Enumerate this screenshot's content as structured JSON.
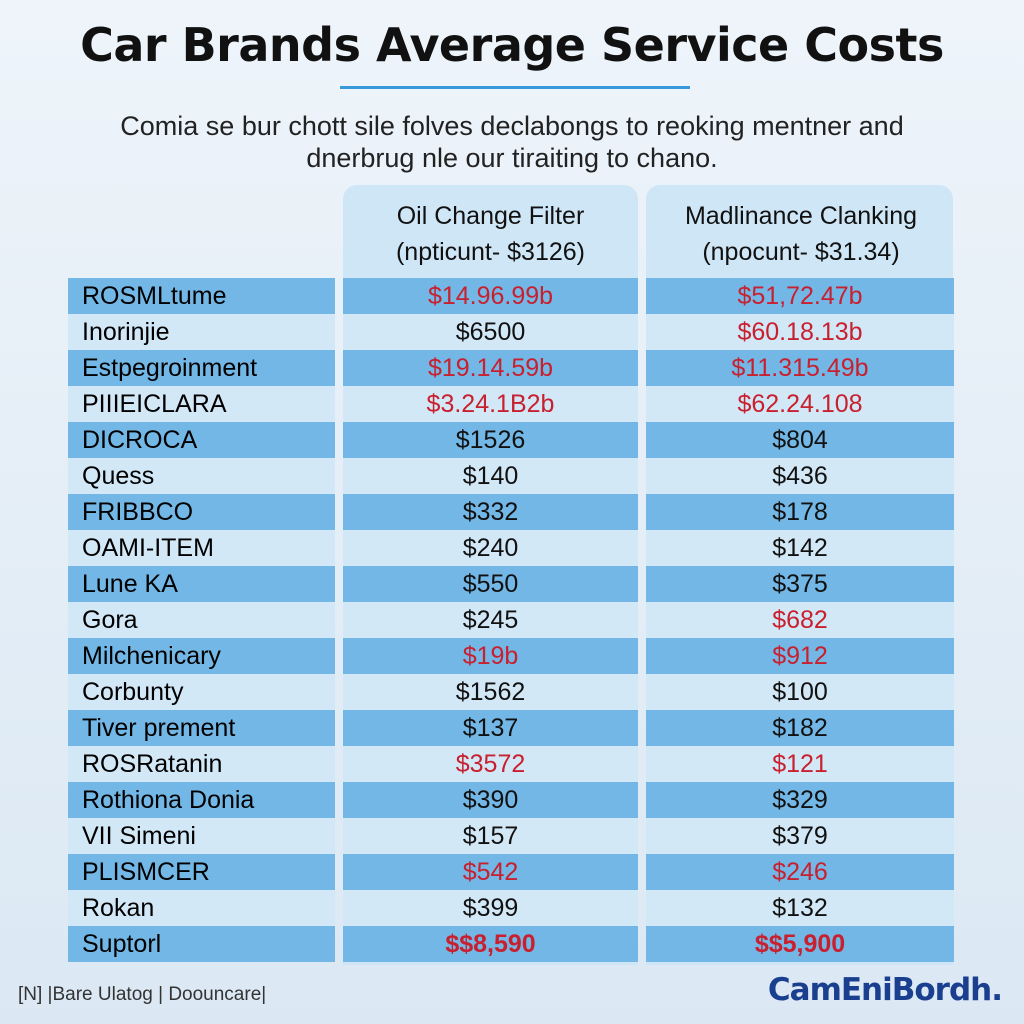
{
  "header": {
    "title": "Car Brands Average Service Costs",
    "subtitle": "Comia se bur chott sile folves declabongs to reoking mentner and dnerbrug nle our tiraiting to chano."
  },
  "table": {
    "columns": [
      "Oil Change Filter (npticunt- $3126)",
      "Madlinance Clanking (npocunt- $31.34)"
    ],
    "rows": [
      [
        {
          "text": "ROSMLtume"
        },
        {
          "text": "$14.96.99b",
          "color": "#c8202e"
        },
        {
          "text": "$51,72.47b",
          "color": "#c8202e"
        }
      ],
      [
        {
          "text": "Inorinjie"
        },
        {
          "text": "$6500",
          "color": "#111111"
        },
        {
          "text": "$60.18.13b",
          "color": "#c8202e"
        }
      ],
      [
        {
          "text": "Estpegroinment"
        },
        {
          "text": "$19.14.59b",
          "color": "#c8202e"
        },
        {
          "text": "$11.315.49b",
          "color": "#c8202e"
        }
      ],
      [
        {
          "text": "PIIIEICLARA"
        },
        {
          "text": "$3.24.1B2b",
          "color": "#c8202e"
        },
        {
          "text": "$62.24.108",
          "color": "#c8202e"
        }
      ],
      [
        {
          "text": "DICROCA"
        },
        {
          "text": "$1526",
          "color": "#111111"
        },
        {
          "text": "$804",
          "color": "#111111"
        }
      ],
      [
        {
          "text": "Quess"
        },
        {
          "text": "$140",
          "color": "#111111"
        },
        {
          "text": "$436",
          "color": "#111111"
        }
      ],
      [
        {
          "text": "FRIBBCO"
        },
        {
          "text": "$332",
          "color": "#111111"
        },
        {
          "text": "$178",
          "color": "#111111"
        }
      ],
      [
        {
          "text": "OAMI-ITEM"
        },
        {
          "text": "$240",
          "color": "#111111"
        },
        {
          "text": "$142",
          "color": "#111111"
        }
      ],
      [
        {
          "text": "Lune KA"
        },
        {
          "text": "$550",
          "color": "#111111"
        },
        {
          "text": "$375",
          "color": "#111111"
        }
      ],
      [
        {
          "text": "Gora"
        },
        {
          "text": "$245",
          "color": "#111111"
        },
        {
          "text": "$682",
          "color": "#c8202e"
        }
      ],
      [
        {
          "text": "Milchenicary"
        },
        {
          "text": "$19b",
          "color": "#c8202e"
        },
        {
          "text": "$912",
          "color": "#c8202e"
        }
      ],
      [
        {
          "text": "Corbunty"
        },
        {
          "text": "$1562",
          "color": "#111111"
        },
        {
          "text": "$100",
          "color": "#111111"
        }
      ],
      [
        {
          "text": "Tiver prement"
        },
        {
          "text": "$137",
          "color": "#111111"
        },
        {
          "text": "$182",
          "color": "#111111"
        }
      ],
      [
        {
          "text": "ROSRatanin"
        },
        {
          "text": "$3572",
          "color": "#c8202e"
        },
        {
          "text": "$121",
          "color": "#c8202e"
        }
      ],
      [
        {
          "text": "Rothiona Donia"
        },
        {
          "text": "$390",
          "color": "#111111"
        },
        {
          "text": "$329",
          "color": "#111111"
        }
      ],
      [
        {
          "text": "VII Simeni"
        },
        {
          "text": "$157",
          "color": "#111111"
        },
        {
          "text": "$379",
          "color": "#111111"
        }
      ],
      [
        {
          "text": "PLISMCER"
        },
        {
          "text": "$542",
          "color": "#c8202e"
        },
        {
          "text": "$246",
          "color": "#c8202e"
        }
      ],
      [
        {
          "text": "Rokan"
        },
        {
          "text": "$399",
          "color": "#111111"
        },
        {
          "text": "$132",
          "color": "#111111"
        }
      ],
      [
        {
          "text": "Suptorl"
        },
        {
          "text": "$$8,590",
          "color": "#c8202e"
        },
        {
          "text": "$$5,900",
          "color": "#c8202e"
        }
      ]
    ]
  },
  "footer": {
    "left": "[N] |Bare Ulatog | Doouncare|",
    "right": "CamEniBordh."
  }
}
